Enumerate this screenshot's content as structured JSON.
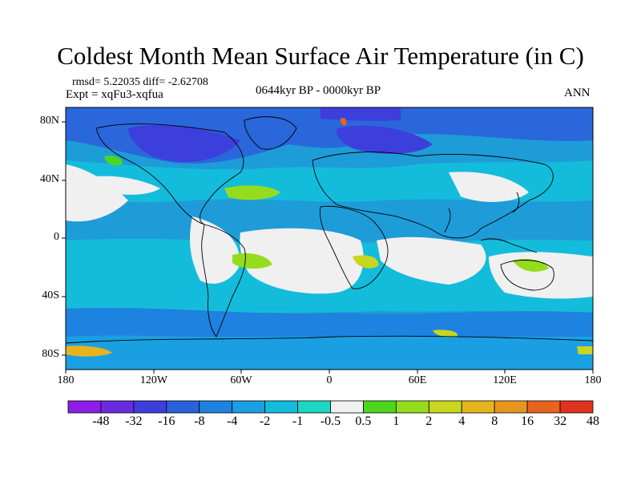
{
  "title": "Coldest Month Mean Surface Air Temperature (in C)",
  "stats": "rmsd= 5.22035 diff= -2.62708",
  "experiment": "Expt = xqFu3-xqfua",
  "period": "0644kyr BP - 0000kyr BP",
  "season": "ANN",
  "lat_labels": [
    "80N",
    "40N",
    "0",
    "40S",
    "80S"
  ],
  "lon_labels": [
    "180",
    "120W",
    "60W",
    "0",
    "60E",
    "120E",
    "180"
  ],
  "colorbar": {
    "labels": [
      "-48",
      "-32",
      "-16",
      "-8",
      "-4",
      "-2",
      "-1",
      "-0.5",
      "0.5",
      "1",
      "2",
      "4",
      "8",
      "16",
      "32",
      "48"
    ],
    "colors": [
      "#8c1ee6",
      "#6a2be0",
      "#3c3fdc",
      "#2a62dc",
      "#1e82e0",
      "#1aa0e2",
      "#14bcdc",
      "#1ed6c4",
      "#f0f0f0",
      "#4ed61e",
      "#96dc1e",
      "#c8d61e",
      "#e6b41e",
      "#e6961e",
      "#e6641e",
      "#e0321e"
    ]
  },
  "colors": {
    "ocean_base": "#1e9cd8",
    "land_outline": "#000000"
  }
}
